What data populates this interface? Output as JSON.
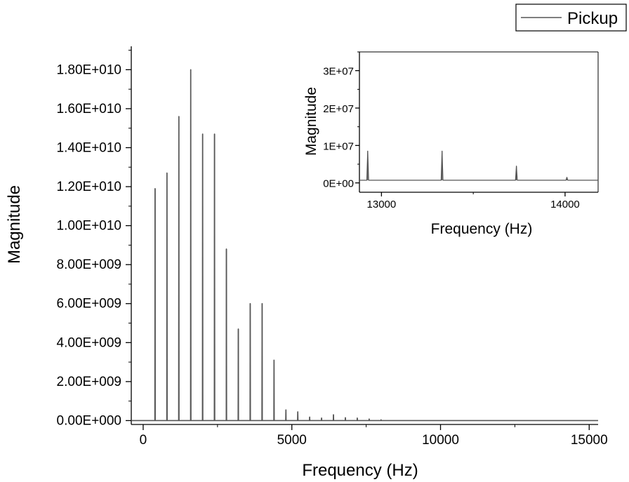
{
  "chart_data": [
    {
      "type": "line",
      "title": "",
      "xlabel": "Frequency (Hz)",
      "ylabel": "Magnitude",
      "xlim": [
        -400,
        15300
      ],
      "ylim": [
        -200000000,
        19200000000
      ],
      "xticks": [
        0,
        5000,
        10000,
        15000
      ],
      "xtick_labels": [
        "0",
        "5000",
        "10000",
        "15000"
      ],
      "yticks": [
        0,
        2000000000,
        4000000000,
        6000000000,
        8000000000,
        10000000000,
        12000000000,
        14000000000,
        16000000000,
        18000000000
      ],
      "ytick_labels": [
        "0.00E+000",
        "2.00E+009",
        "4.00E+009",
        "6.00E+009",
        "8.00E+009",
        "1.00E+010",
        "1.20E+010",
        "1.40E+010",
        "1.60E+010",
        "1.80E+010"
      ],
      "grid": false,
      "legend": "top-right",
      "series": [
        {
          "name": "Pickup",
          "color": "#555555",
          "peak_width_hz": 6,
          "peaks": [
            {
              "x": 400,
              "y": 11900000000
            },
            {
              "x": 800,
              "y": 12700000000
            },
            {
              "x": 1200,
              "y": 15600000000
            },
            {
              "x": 1600,
              "y": 18000000000
            },
            {
              "x": 2000,
              "y": 14700000000
            },
            {
              "x": 2400,
              "y": 14700000000
            },
            {
              "x": 2800,
              "y": 8800000000
            },
            {
              "x": 3200,
              "y": 4700000000
            },
            {
              "x": 3600,
              "y": 6000000000
            },
            {
              "x": 4000,
              "y": 6000000000
            },
            {
              "x": 4400,
              "y": 3100000000
            },
            {
              "x": 4800,
              "y": 550000000
            },
            {
              "x": 5200,
              "y": 450000000
            },
            {
              "x": 5600,
              "y": 180000000
            },
            {
              "x": 6000,
              "y": 130000000
            },
            {
              "x": 6400,
              "y": 300000000
            },
            {
              "x": 6800,
              "y": 150000000
            },
            {
              "x": 7200,
              "y": 130000000
            },
            {
              "x": 7600,
              "y": 80000000
            },
            {
              "x": 8000,
              "y": 40000000
            }
          ]
        }
      ]
    },
    {
      "type": "line",
      "title": "",
      "xlabel": "Frequency (Hz)",
      "ylabel": "Magnitude",
      "xlim": [
        12880,
        14180
      ],
      "ylim": [
        -2500000,
        35000000
      ],
      "xticks": [
        13000,
        14000
      ],
      "xtick_labels": [
        "13000",
        "14000"
      ],
      "yticks": [
        0,
        10000000,
        20000000,
        30000000
      ],
      "ytick_labels": [
        "0E+00",
        "1E+07",
        "2E+07",
        "3E+07"
      ],
      "grid": false,
      "series": [
        {
          "color": "#555555",
          "baseline": 700000,
          "peak_width_hz": 5,
          "peaks": [
            {
              "x": 12925,
              "y": 8500000
            },
            {
              "x": 13330,
              "y": 8500000
            },
            {
              "x": 13735,
              "y": 4500000
            },
            {
              "x": 14010,
              "y": 1500000
            }
          ]
        }
      ]
    }
  ]
}
